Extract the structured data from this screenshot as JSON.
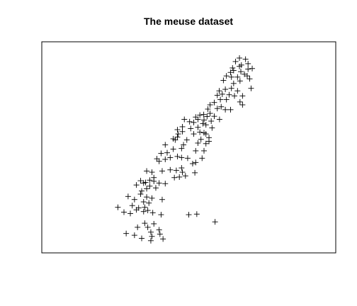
{
  "chart_data": {
    "type": "scatter",
    "title": "The meuse dataset",
    "xlabel": "",
    "ylabel": "",
    "axes_shown": false,
    "box": true,
    "grid": false,
    "marker": "+",
    "marker_color": "#000000",
    "note": "Axes have no tick labels; point values are given as relative plot coordinates (x: 0-100 left to right, y: 0-100 bottom to top).",
    "xlim": [
      0,
      100
    ],
    "ylim": [
      0,
      100
    ],
    "points": [
      [
        68.3,
        96.0
      ],
      [
        70.5,
        95.4
      ],
      [
        66.9,
        94.2
      ],
      [
        71.4,
        93.1
      ],
      [
        69.0,
        92.4
      ],
      [
        68.3,
        91.7
      ],
      [
        65.8,
        90.9
      ],
      [
        72.9,
        90.6
      ],
      [
        71.4,
        90.3
      ],
      [
        66.2,
        89.6
      ],
      [
        65.1,
        88.6
      ],
      [
        68.8,
        89.0
      ],
      [
        70.1,
        87.7
      ],
      [
        63.6,
        86.8
      ],
      [
        65.4,
        86.2
      ],
      [
        67.6,
        86.2
      ],
      [
        71.1,
        86.8
      ],
      [
        72.0,
        85.3
      ],
      [
        62.5,
        84.5
      ],
      [
        68.5,
        84.2
      ],
      [
        66.2,
        82.9
      ],
      [
        65.4,
        80.4
      ],
      [
        72.5,
        80.4
      ],
      [
        61.0,
        79.1
      ],
      [
        63.2,
        79.9
      ],
      [
        62.1,
        77.4
      ],
      [
        67.6,
        79.1
      ],
      [
        64.6,
        77.1
      ],
      [
        60.3,
        76.8
      ],
      [
        66.5,
        76.5
      ],
      [
        69.4,
        76.5
      ],
      [
        61.4,
        74.6
      ],
      [
        63.6,
        74.6
      ],
      [
        68.5,
        73.4
      ],
      [
        59.2,
        73.1
      ],
      [
        57.7,
        71.9
      ],
      [
        69.4,
        71.9
      ],
      [
        61.7,
        70.9
      ],
      [
        60.3,
        70.0
      ],
      [
        56.9,
        69.7
      ],
      [
        63.2,
        69.4
      ],
      [
        65.1,
        69.4
      ],
      [
        57.7,
        67.5
      ],
      [
        59.2,
        66.0
      ],
      [
        55.4,
        66.9
      ],
      [
        54.0,
        66.6
      ],
      [
        56.6,
        65.9
      ],
      [
        52.5,
        65.6
      ],
      [
        53.3,
        64.4
      ],
      [
        55.5,
        64.1
      ],
      [
        61.1,
        64.4
      ],
      [
        48.4,
        64.4
      ],
      [
        50.3,
        63.2
      ],
      [
        58.1,
        63.5
      ],
      [
        51.8,
        62.8
      ],
      [
        55.1,
        62.2
      ],
      [
        56.2,
        61.6
      ],
      [
        47.7,
        60.6
      ],
      [
        53.3,
        60.3
      ],
      [
        45.9,
        59.1
      ],
      [
        50.7,
        59.7
      ],
      [
        58.4,
        60.0
      ],
      [
        47.7,
        58.1
      ],
      [
        55.5,
        57.5
      ],
      [
        54.0,
        57.8
      ],
      [
        51.8,
        56.9
      ],
      [
        46.2,
        56.9
      ],
      [
        56.2,
        56.9
      ],
      [
        45.9,
        55.3
      ],
      [
        57.3,
        55.0
      ],
      [
        54.4,
        54.1
      ],
      [
        44.4,
        54.4
      ],
      [
        49.3,
        53.8
      ],
      [
        45.1,
        53.8
      ],
      [
        57.3,
        53.1
      ],
      [
        53.3,
        52.2
      ],
      [
        56.2,
        51.9
      ],
      [
        41.5,
        51.3
      ],
      [
        48.1,
        51.3
      ],
      [
        47.4,
        49.4
      ],
      [
        44.4,
        49.1
      ],
      [
        52.5,
        48.2
      ],
      [
        55.5,
        48.2
      ],
      [
        42.2,
        47.2
      ],
      [
        40.0,
        46.9
      ],
      [
        45.9,
        45.3
      ],
      [
        43.3,
        44.7
      ],
      [
        47.4,
        44.7
      ],
      [
        49.6,
        44.4
      ],
      [
        54.8,
        44.4
      ],
      [
        38.5,
        44.1
      ],
      [
        41.5,
        43.8
      ],
      [
        39.3,
        42.8
      ],
      [
        52.5,
        42.2
      ],
      [
        51.4,
        41.6
      ],
      [
        47.4,
        39.4
      ],
      [
        45.5,
        38.1
      ],
      [
        43.3,
        38.4
      ],
      [
        34.8,
        37.8
      ],
      [
        40.4,
        37.8
      ],
      [
        36.7,
        37.2
      ],
      [
        47.7,
        37.2
      ],
      [
        52.2,
        36.9
      ],
      [
        48.8,
        35.3
      ],
      [
        46.6,
        34.7
      ],
      [
        44.8,
        34.4
      ],
      [
        37.4,
        34.4
      ],
      [
        35.9,
        33.1
      ],
      [
        32.6,
        32.8
      ],
      [
        37.4,
        32.5
      ],
      [
        34.4,
        31.9
      ],
      [
        33.7,
        31.6
      ],
      [
        39.3,
        31.6
      ],
      [
        41.5,
        31.3
      ],
      [
        31.1,
        30.6
      ],
      [
        35.9,
        30.0
      ],
      [
        38.1,
        29.1
      ],
      [
        34.8,
        28.7
      ],
      [
        33.0,
        27.5
      ],
      [
        32.6,
        25.9
      ],
      [
        28.1,
        24.7
      ],
      [
        34.8,
        24.4
      ],
      [
        36.7,
        23.8
      ],
      [
        30.4,
        23.1
      ],
      [
        40.4,
        23.1
      ],
      [
        33.7,
        21.9
      ],
      [
        35.6,
        21.3
      ],
      [
        29.6,
        20.0
      ],
      [
        24.4,
        19.1
      ],
      [
        31.9,
        18.8
      ],
      [
        34.1,
        19.1
      ],
      [
        31.1,
        17.8
      ],
      [
        35.2,
        17.5
      ],
      [
        33.7,
        16.9
      ],
      [
        37.0,
        16.3
      ],
      [
        26.6,
        16.6
      ],
      [
        28.9,
        15.9
      ],
      [
        40.0,
        15.3
      ],
      [
        50.0,
        15.3
      ],
      [
        52.9,
        15.6
      ],
      [
        59.5,
        11.6
      ],
      [
        34.1,
        10.9
      ],
      [
        37.4,
        10.6
      ],
      [
        31.5,
        8.8
      ],
      [
        35.2,
        8.8
      ],
      [
        39.3,
        7.5
      ],
      [
        36.3,
        6.3
      ],
      [
        39.6,
        5.3
      ],
      [
        30.4,
        4.7
      ],
      [
        36.7,
        4.1
      ],
      [
        27.4,
        5.6
      ],
      [
        33.0,
        3.1
      ],
      [
        40.7,
        2.8
      ],
      [
        36.3,
        1.9
      ]
    ]
  }
}
